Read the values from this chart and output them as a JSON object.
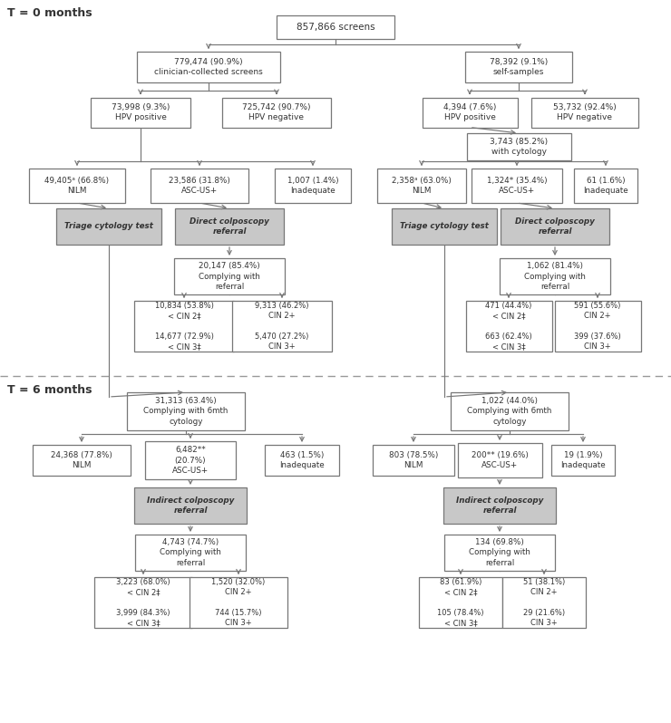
{
  "fig_width": 7.4,
  "fig_height": 7.98,
  "bg_color": "#ffffff",
  "gray_box_color": "#c8c8c8",
  "box_edge_color": "#777777",
  "arrow_color": "#777777",
  "text_color": "#333333",
  "label_t0": "T = 0 months",
  "label_t6": "T = 6 months",
  "comment_superscript": "ᵃ"
}
